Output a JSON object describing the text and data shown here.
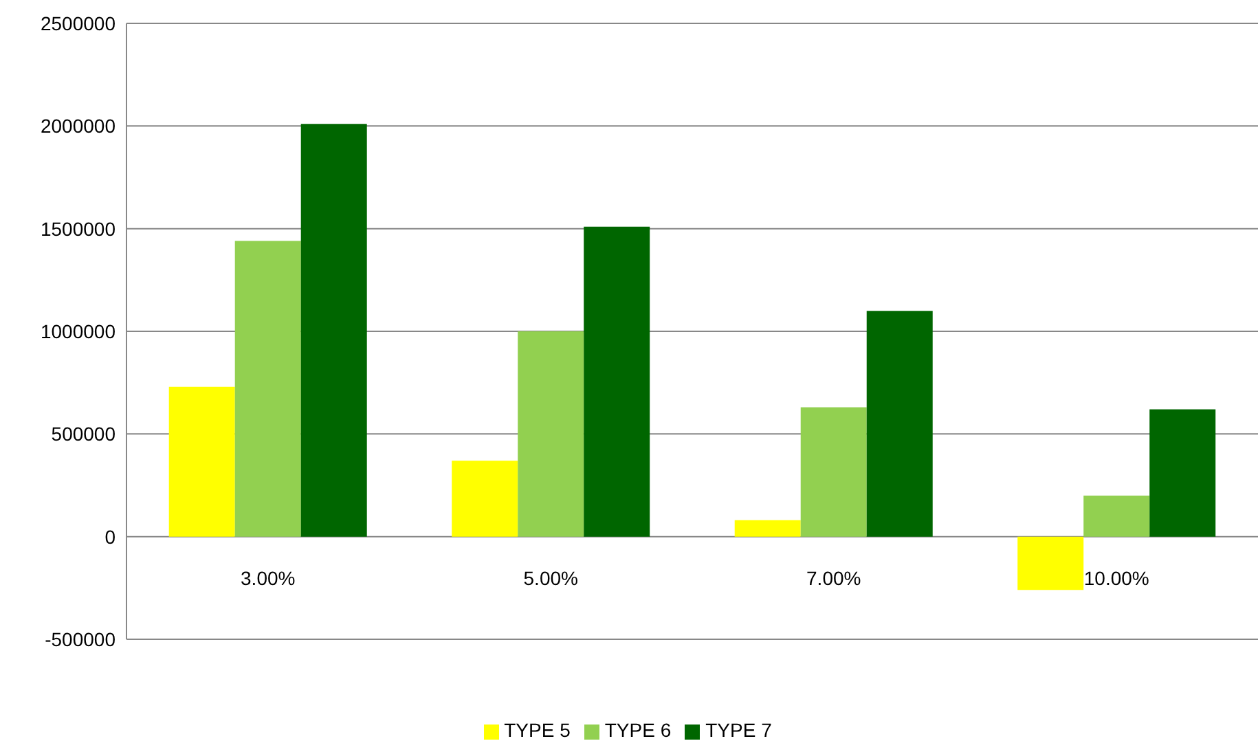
{
  "chart_data": {
    "type": "bar",
    "categories": [
      "3.00%",
      "5.00%",
      "7.00%",
      "10.00%"
    ],
    "series": [
      {
        "name": "TYPE 5",
        "color": "#ffff00",
        "values": [
          730000,
          370000,
          80000,
          -260000
        ]
      },
      {
        "name": "TYPE 6",
        "color": "#92d050",
        "values": [
          1440000,
          1000000,
          630000,
          200000
        ]
      },
      {
        "name": "TYPE 7",
        "color": "#006600",
        "values": [
          2010000,
          1510000,
          1100000,
          620000
        ]
      }
    ],
    "ylim": [
      -500000,
      2500000
    ],
    "yticks": [
      -500000,
      0,
      500000,
      1000000,
      1500000,
      2000000,
      2500000
    ],
    "grid": "y",
    "legend": "bottom"
  }
}
